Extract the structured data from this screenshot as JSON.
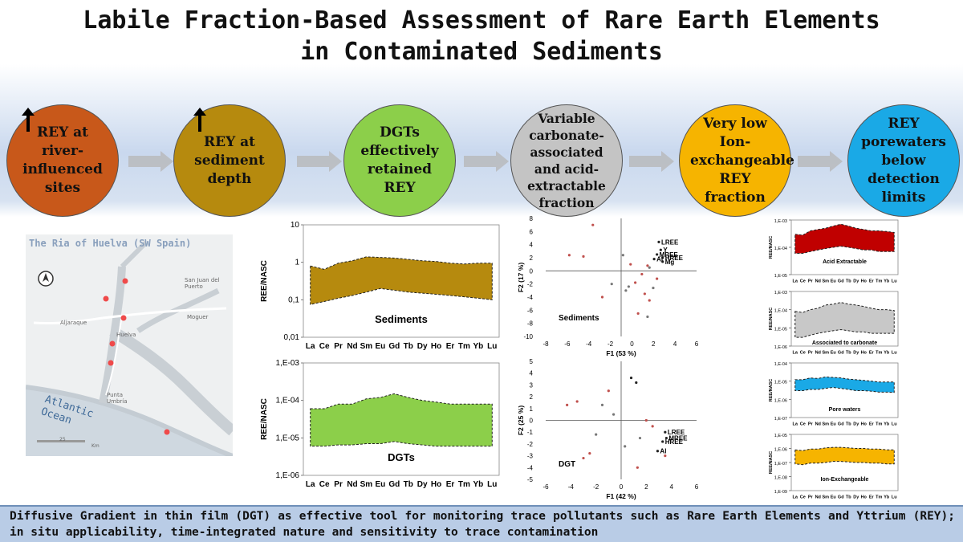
{
  "title": {
    "line1": "Labile Fraction-Based Assessment of Rare Earth Elements",
    "line2": "in Contaminated Sediments"
  },
  "findings": [
    {
      "text": "REY at river-influenced sites",
      "color": "#c8581a",
      "arrow": true
    },
    {
      "text": "REY at sediment depth",
      "color": "#b68a0e",
      "arrow": true
    },
    {
      "text": "DGTs effectively retained REY",
      "color": "#8ccf4a",
      "arrow": false
    },
    {
      "text": "Variable carbonate-associated and acid-extractable fraction",
      "color": "#c4c4c4",
      "arrow": false
    },
    {
      "text": "Very low Ion-exchangeable REY fraction",
      "color": "#f6b400",
      "arrow": false
    },
    {
      "text": "REY porewaters below detection limits",
      "color": "#1aa9e6",
      "arrow": false
    }
  ],
  "map": {
    "title": "The Ria of Huelva (SW Spain)",
    "places": [
      "San Juan del Puerto",
      "Aljaraque",
      "Huelva",
      "Moguer",
      "Punta Umbría"
    ],
    "sea": "Atlantic Ocean",
    "scale": "25",
    "scale_unit": "Km"
  },
  "colors": {
    "sediments": "#b68a0e",
    "dgt": "#8ccf4a",
    "acid": "#c00000",
    "carbonate": "#c8c8c8",
    "pore": "#1aa9e6",
    "ion": "#f6b400",
    "footer_bg": "#b9cce6"
  },
  "chart_data": [
    {
      "type": "area",
      "title": "Sediments",
      "ylabel": "REE/NASC",
      "scale": "log",
      "ylim": [
        0.01,
        10
      ],
      "yticks": [
        "10",
        "1",
        "0,1",
        "0,01"
      ],
      "categories": [
        "La",
        "Ce",
        "Pr",
        "Nd",
        "Sm",
        "Eu",
        "Gd",
        "Tb",
        "Dy",
        "Ho",
        "Er",
        "Tm",
        "Yb",
        "Lu"
      ],
      "series": [
        {
          "values": [
            0.8,
            0.65,
            0.95,
            1.1,
            1.4,
            1.35,
            1.3,
            1.2,
            1.1,
            1.05,
            0.95,
            0.9,
            0.95,
            0.95
          ]
        },
        {
          "values": [
            0.075,
            0.09,
            0.11,
            0.13,
            0.16,
            0.2,
            0.18,
            0.16,
            0.15,
            0.14,
            0.13,
            0.12,
            0.11,
            0.1
          ]
        }
      ]
    },
    {
      "type": "area",
      "title": "DGTs",
      "ylabel": "REE/NASC",
      "scale": "log",
      "ylim": [
        1e-06,
        0.001
      ],
      "yticks": [
        "1,E-03",
        "1,E-04",
        "1,E-05",
        "1,E-06"
      ],
      "categories": [
        "La",
        "Ce",
        "Pr",
        "Nd",
        "Sm",
        "Eu",
        "Gd",
        "Tb",
        "Dy",
        "Ho",
        "Er",
        "Tm",
        "Yb",
        "Lu"
      ],
      "series": [
        {
          "values": [
            6e-05,
            6e-05,
            8e-05,
            8e-05,
            0.00011,
            0.00012,
            0.00015,
            0.00012,
            0.0001,
            9e-05,
            8e-05,
            8e-05,
            8e-05,
            8e-05
          ]
        },
        {
          "values": [
            6e-06,
            6e-06,
            6.5e-06,
            6.5e-06,
            7e-06,
            7e-06,
            8e-06,
            7e-06,
            6.5e-06,
            6e-06,
            6e-06,
            6e-06,
            6e-06,
            6e-06
          ]
        }
      ]
    },
    {
      "type": "scatter",
      "title": "Sediments",
      "xlabel": "F1 (53 %)",
      "ylabel": "F2 (17 %)",
      "xlim": [
        -8,
        8
      ],
      "ylim": [
        -10,
        8
      ],
      "xticks": [
        "-8",
        "-6",
        "-4",
        "-2",
        "0",
        "2",
        "4",
        "6"
      ],
      "yticks": [
        "8",
        "6",
        "4",
        "2",
        "0",
        "-2",
        "-4",
        "-6",
        "-8",
        "-10"
      ],
      "labels": [
        "LREE",
        "Y",
        "MREE",
        "HREE",
        "Al",
        "Mg"
      ],
      "points": [
        [
          4.0,
          4.4
        ],
        [
          4.2,
          3.2
        ],
        [
          3.8,
          2.5
        ],
        [
          4.4,
          2.0
        ],
        [
          3.5,
          1.8
        ],
        [
          4.4,
          1.4
        ],
        [
          3.0,
          0.5
        ],
        [
          2.2,
          -0.5
        ],
        [
          1.5,
          -1.8
        ],
        [
          0.5,
          -3.0
        ],
        [
          2.5,
          -3.5
        ],
        [
          3.0,
          -4.5
        ],
        [
          -1.0,
          -2.0
        ],
        [
          -2.0,
          -4.0
        ],
        [
          1.0,
          1.0
        ],
        [
          0.2,
          2.4
        ],
        [
          -3.0,
          7.0
        ],
        [
          1.8,
          -6.5
        ],
        [
          2.8,
          -7.0
        ],
        [
          -5.5,
          2.4
        ],
        [
          -4.0,
          2.2
        ],
        [
          0.8,
          -2.4
        ],
        [
          3.8,
          -1.2
        ],
        [
          2.8,
          0.8
        ],
        [
          3.4,
          -2.6
        ]
      ]
    },
    {
      "type": "scatter",
      "title": "DGT",
      "xlabel": "F1 (42 %)",
      "ylabel": "F2 (25 %)",
      "xlim": [
        -6,
        6
      ],
      "ylim": [
        -5,
        5
      ],
      "xticks": [
        "-6",
        "-4",
        "-2",
        "0",
        "2",
        "4",
        "6"
      ],
      "yticks": [
        "5",
        "4",
        "3",
        "2",
        "1",
        "0",
        "-1",
        "-2",
        "-3",
        "-4",
        "-5"
      ],
      "labels": [
        "LREE",
        "MREE",
        "HREE",
        "Al"
      ],
      "points": [
        [
          3.5,
          -1.0
        ],
        [
          3.6,
          -1.5
        ],
        [
          3.3,
          -1.8
        ],
        [
          2.9,
          -2.6
        ],
        [
          0.8,
          3.6
        ],
        [
          1.2,
          3.2
        ],
        [
          -1.5,
          1.3
        ],
        [
          -3.5,
          1.6
        ],
        [
          -4.3,
          1.3
        ],
        [
          -2.0,
          -1.2
        ],
        [
          -2.5,
          -2.8
        ],
        [
          -3.0,
          -3.2
        ],
        [
          1.5,
          -1.5
        ],
        [
          2.0,
          0.0
        ],
        [
          2.5,
          -0.5
        ],
        [
          -0.6,
          0.5
        ],
        [
          1.3,
          -4.0
        ],
        [
          3.5,
          -3.0
        ],
        [
          0.3,
          -2.2
        ],
        [
          -1.0,
          2.5
        ]
      ]
    },
    {
      "type": "area",
      "title": "Acid Extractable",
      "ylabel": "REE/NASC",
      "scale": "log",
      "ylim": [
        1e-05,
        0.001
      ],
      "yticks": [
        "1,E-03",
        "1,E-04",
        "1,E-05"
      ],
      "categories": [
        "La",
        "Ce",
        "Pr",
        "Nd",
        "Sm",
        "Eu",
        "Gd",
        "Tb",
        "Dy",
        "Ho",
        "Er",
        "Tm",
        "Yb",
        "Lu"
      ],
      "series": [
        {
          "values": [
            0.0003,
            0.00028,
            0.0004,
            0.00045,
            0.0005,
            0.0006,
            0.0007,
            0.0006,
            0.0005,
            0.00045,
            0.0004,
            0.0004,
            0.00038,
            0.00035
          ]
        },
        {
          "values": [
            6e-05,
            6e-05,
            7e-05,
            8e-05,
            9e-05,
            0.0001,
            0.00011,
            0.0001,
            9e-05,
            8e-05,
            8e-05,
            7e-05,
            7e-05,
            7e-05
          ]
        }
      ]
    },
    {
      "type": "area",
      "title": "Associated to carbonate",
      "ylabel": "REE/NASC",
      "scale": "log",
      "ylim": [
        1e-06,
        0.001
      ],
      "yticks": [
        "1,E-03",
        "1,E-04",
        "1,E-05",
        "1,E-06"
      ],
      "categories": [
        "La",
        "Ce",
        "Pr",
        "Nd",
        "Sm",
        "Eu",
        "Gd",
        "Tb",
        "Dy",
        "Ho",
        "Er",
        "Tm",
        "Yb",
        "Lu"
      ],
      "series": [
        {
          "values": [
            8e-05,
            7e-05,
            0.0001,
            0.00012,
            0.00018,
            0.0002,
            0.00025,
            0.0002,
            0.00018,
            0.00015,
            0.00012,
            0.0001,
            0.0001,
            9e-05
          ]
        },
        {
          "values": [
            3e-06,
            3e-06,
            4e-06,
            5e-06,
            6e-06,
            7e-06,
            8e-06,
            7e-06,
            6e-06,
            6e-06,
            5e-06,
            5e-06,
            5e-06,
            5e-06
          ]
        }
      ]
    },
    {
      "type": "area",
      "title": "Pore waters",
      "ylabel": "REE/NASC",
      "scale": "log",
      "ylim": [
        1e-07,
        0.0001
      ],
      "yticks": [
        "1,E-04",
        "1,E-05",
        "1,E-06",
        "1,E-07"
      ],
      "categories": [
        "La",
        "Ce",
        "Pr",
        "Nd",
        "Sm",
        "Eu",
        "Gd",
        "Tb",
        "Dy",
        "Ho",
        "Er",
        "Tm",
        "Yb",
        "Lu"
      ],
      "series": [
        {
          "values": [
            1.2e-05,
            1.2e-05,
            1.5e-05,
            1.4e-05,
            1.7e-05,
            1.6e-05,
            1.5e-05,
            1.3e-05,
            1.2e-05,
            1.1e-05,
            1e-05,
            9e-06,
            9e-06,
            9e-06
          ]
        },
        {
          "values": [
            3e-06,
            3e-06,
            3.5e-06,
            3.5e-06,
            4e-06,
            4.5e-06,
            4e-06,
            3.5e-06,
            3e-06,
            3e-06,
            2.8e-06,
            2.5e-06,
            2.5e-06,
            2.4e-06
          ]
        }
      ]
    },
    {
      "type": "area",
      "title": "Ion-Exchangeable",
      "ylabel": "REE/NASC",
      "scale": "log",
      "ylim": [
        1e-09,
        1e-05
      ],
      "yticks": [
        "1,E-05",
        "1,E-06",
        "1,E-07",
        "1,E-08",
        "1,E-09"
      ],
      "categories": [
        "La",
        "Ce",
        "Pr",
        "Nd",
        "Sm",
        "Eu",
        "Gd",
        "Tb",
        "Dy",
        "Ho",
        "Er",
        "Tm",
        "Yb",
        "Lu"
      ],
      "series": [
        {
          "values": [
            8e-07,
            7e-07,
            9e-07,
            9e-07,
            1.1e-06,
            1.2e-06,
            1.2e-06,
            1.1e-06,
            1e-06,
            1e-06,
            9e-07,
            9e-07,
            8e-07,
            8e-07
          ]
        },
        {
          "values": [
            8e-08,
            7e-08,
            9e-08,
            9e-08,
            1e-07,
            1.2e-07,
            1.2e-07,
            1.1e-07,
            1e-07,
            1e-07,
            9e-08,
            9e-08,
            8e-08,
            8e-08
          ]
        }
      ]
    }
  ],
  "footer": {
    "text": "Diffusive Gradient in thin film (DGT) as effective tool for monitoring trace pollutants such as Rare Earth Elements and Yttrium (REY); in situ applicability, time-integrated nature and sensitivity to trace contamination"
  }
}
